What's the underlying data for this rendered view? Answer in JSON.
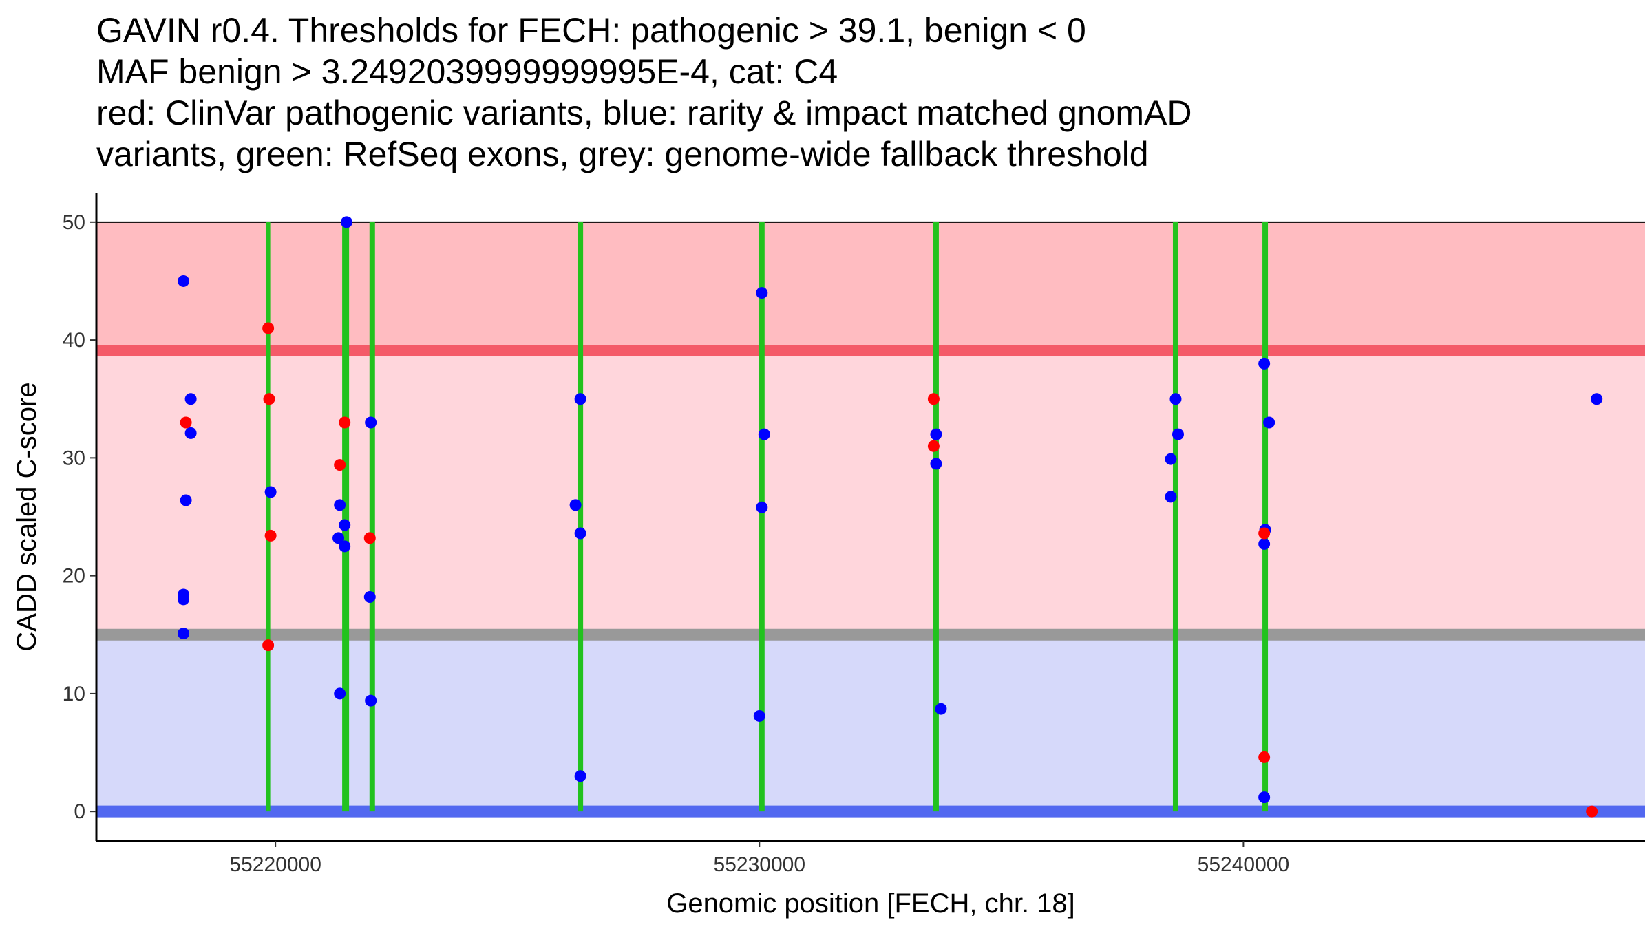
{
  "chart_data": {
    "type": "scatter",
    "title_lines": [
      "GAVIN r0.4. Thresholds for FECH: pathogenic > 39.1, benign < 0",
      "MAF benign > 3.2492039999999995E-4, cat: C4",
      "red: ClinVar pathogenic variants, blue: rarity & impact matched gnomAD",
      "variants, green: RefSeq exons, grey: genome-wide fallback threshold"
    ],
    "xlabel": "Genomic position [FECH, chr. 18]",
    "ylabel": "CADD scaled C-score",
    "xlim": [
      55216300,
      55248300
    ],
    "ylim": [
      -2.5,
      52.5
    ],
    "x_ticks": [
      {
        "value": 55220000,
        "label": "55220000"
      },
      {
        "value": 55230000,
        "label": "55230000"
      },
      {
        "value": 55240000,
        "label": "55240000"
      }
    ],
    "y_ticks": [
      {
        "value": 0,
        "label": "0"
      },
      {
        "value": 10,
        "label": "10"
      },
      {
        "value": 20,
        "label": "20"
      },
      {
        "value": 30,
        "label": "30"
      },
      {
        "value": 40,
        "label": "40"
      },
      {
        "value": 50,
        "label": "50"
      }
    ],
    "bands": [
      {
        "name": "pathogenic-zone",
        "y0": 39.1,
        "y1": 50,
        "color": "#ffbcc1"
      },
      {
        "name": "likely-pathogenic-zone",
        "y0": 15,
        "y1": 39.1,
        "color": "#ffd6dc"
      },
      {
        "name": "benign-zone",
        "y0": 0,
        "y1": 15,
        "color": "#d6d9fa"
      }
    ],
    "threshold_lines": [
      {
        "name": "pathogenic-threshold-line",
        "y": 39.1,
        "color": "#f45a68"
      },
      {
        "name": "fallback-threshold-line",
        "y": 15,
        "color": "#999999"
      },
      {
        "name": "benign-threshold-line",
        "y": 0,
        "color": "#5268f0"
      }
    ],
    "top_border_y": 50,
    "exon_color": "#22c21e",
    "exons": [
      {
        "x": 55219850,
        "width": 1
      },
      {
        "x": 55221450,
        "width": 3
      },
      {
        "x": 55222000,
        "width": 2
      },
      {
        "x": 55226300,
        "width": 2
      },
      {
        "x": 55230050,
        "width": 2
      },
      {
        "x": 55233650,
        "width": 2
      },
      {
        "x": 55238600,
        "width": 2
      },
      {
        "x": 55240450,
        "width": 2
      }
    ],
    "series": [
      {
        "name": "gnomAD matched variants",
        "color": "#0000ff",
        "points": [
          [
            55218100,
            45
          ],
          [
            55218100,
            18.4
          ],
          [
            55218100,
            18
          ],
          [
            55218100,
            15.1
          ],
          [
            55218150,
            26.4
          ],
          [
            55218250,
            35
          ],
          [
            55218250,
            32.1
          ],
          [
            55219900,
            27.1
          ],
          [
            55221470,
            50
          ],
          [
            55221430,
            24.3
          ],
          [
            55221430,
            22.5
          ],
          [
            55221330,
            26
          ],
          [
            55221300,
            23.2
          ],
          [
            55221330,
            10
          ],
          [
            55221970,
            33
          ],
          [
            55221950,
            18.2
          ],
          [
            55221970,
            9.4
          ],
          [
            55226300,
            35
          ],
          [
            55226200,
            26
          ],
          [
            55226300,
            23.6
          ],
          [
            55226300,
            3
          ],
          [
            55230050,
            44
          ],
          [
            55230100,
            32
          ],
          [
            55230050,
            25.8
          ],
          [
            55230000,
            8.1
          ],
          [
            55233650,
            32
          ],
          [
            55233650,
            29.5
          ],
          [
            55233750,
            8.7
          ],
          [
            55238600,
            35
          ],
          [
            55238650,
            32
          ],
          [
            55238500,
            29.9
          ],
          [
            55238500,
            26.7
          ],
          [
            55240430,
            38
          ],
          [
            55240530,
            33
          ],
          [
            55240450,
            23.9
          ],
          [
            55240430,
            22.7
          ],
          [
            55240430,
            1.2
          ],
          [
            55247300,
            35
          ]
        ]
      },
      {
        "name": "ClinVar pathogenic variants",
        "color": "#ff0000",
        "points": [
          [
            55219850,
            41
          ],
          [
            55218150,
            33
          ],
          [
            55219870,
            35
          ],
          [
            55219900,
            23.4
          ],
          [
            55219850,
            14.1
          ],
          [
            55221430,
            33
          ],
          [
            55221330,
            29.4
          ],
          [
            55221950,
            23.2
          ],
          [
            55233600,
            35
          ],
          [
            55233600,
            31
          ],
          [
            55240430,
            23.6
          ],
          [
            55240430,
            4.6
          ],
          [
            55247200,
            0
          ]
        ]
      }
    ]
  }
}
